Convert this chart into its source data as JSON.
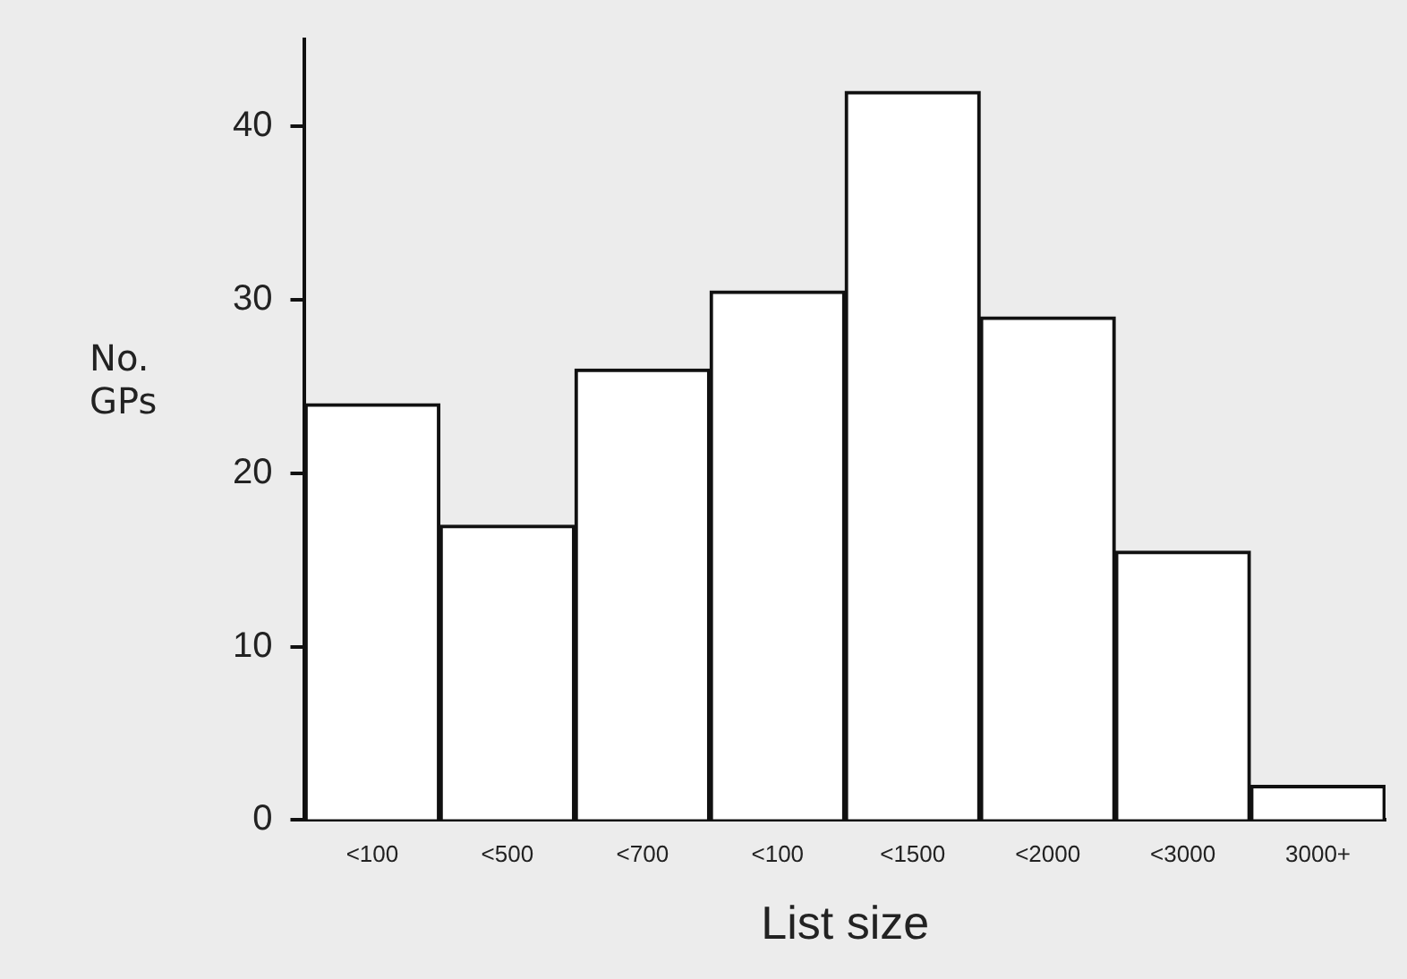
{
  "chart_data": {
    "type": "bar",
    "xlabel": "List size",
    "ylabel": "No. GPs",
    "categories": [
      "<100",
      "<500",
      "<700",
      "<100",
      "<1500",
      "<2000",
      "<3000",
      "3000+"
    ],
    "values": [
      24,
      17,
      26,
      30.5,
      42,
      29,
      15.5,
      2
    ],
    "color": "#ffffff",
    "ylim": [
      0,
      45
    ],
    "yticks": [
      0,
      10,
      20,
      30,
      40
    ],
    "grid": false,
    "legend": false
  }
}
